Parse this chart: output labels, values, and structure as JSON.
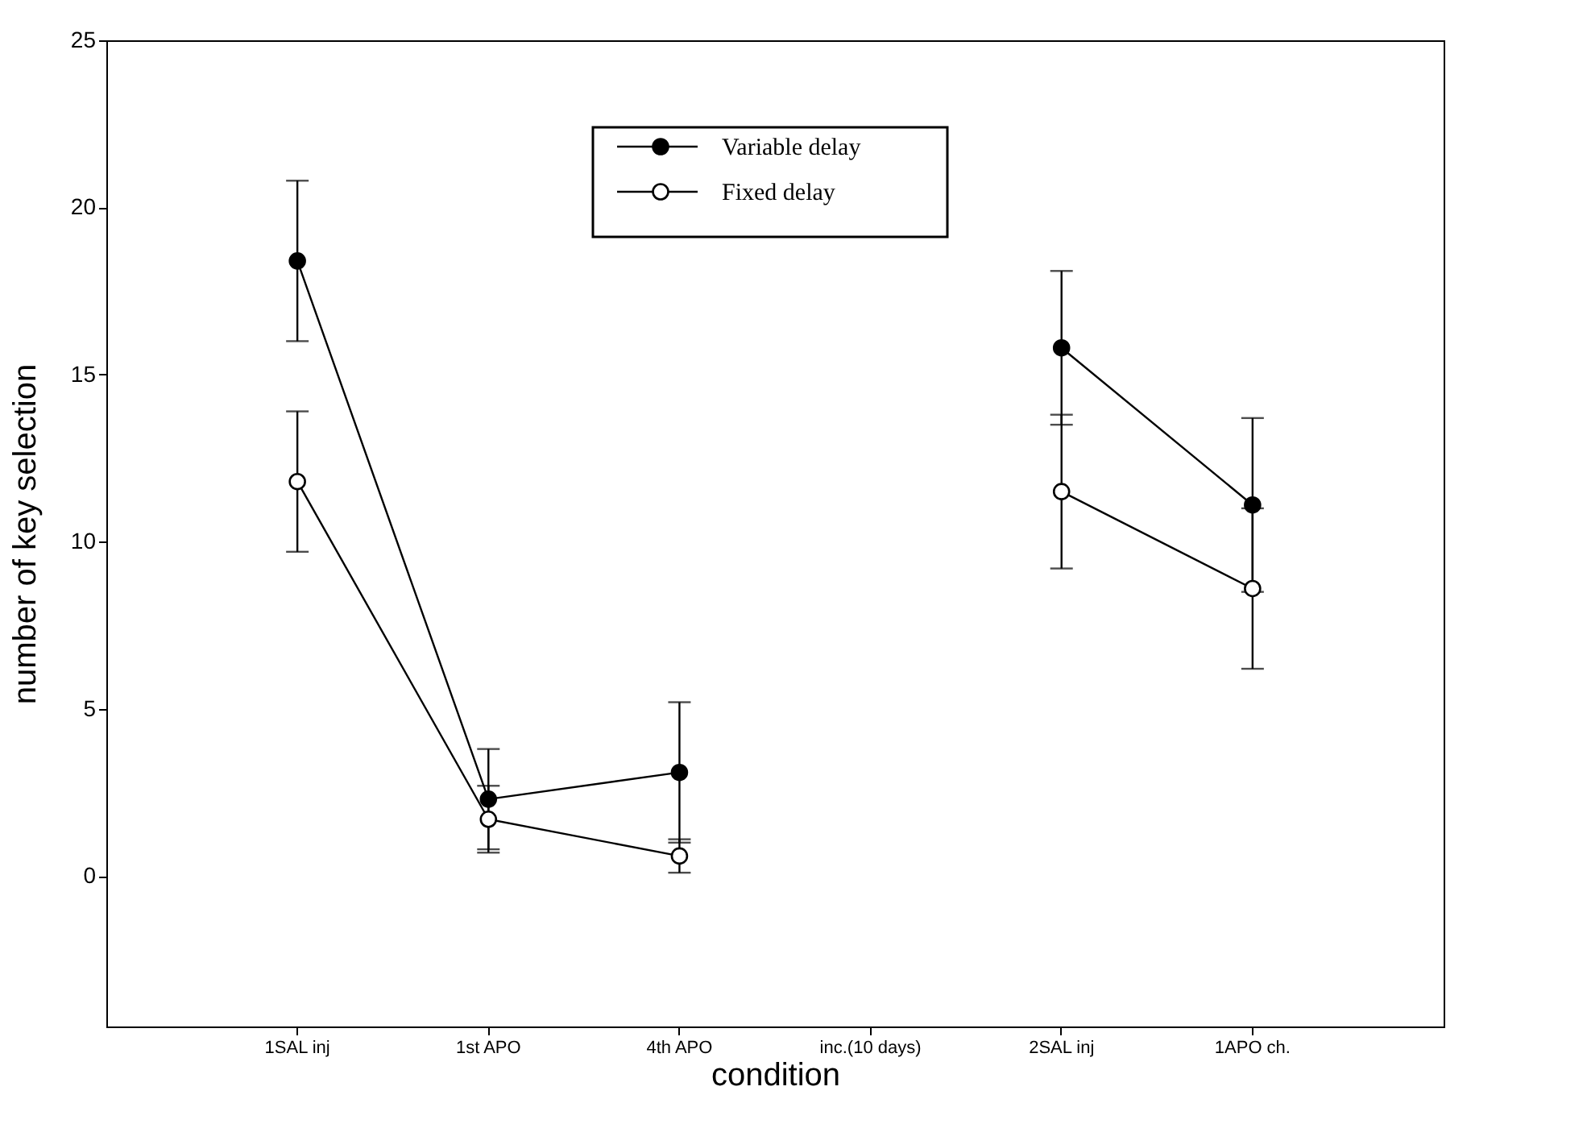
{
  "chart_data": {
    "type": "line",
    "xlabel": "condition",
    "ylabel": "number of key selection",
    "categories": [
      "1SAL inj",
      "1st APO",
      "4th APO",
      "inc.(10 days)",
      "2SAL inj",
      "1APO ch."
    ],
    "series": [
      {
        "name": "Variable delay",
        "color": "#000000",
        "values": [
          18.4,
          2.3,
          3.1,
          null,
          15.8,
          11.1
        ],
        "errors": [
          2.4,
          1.5,
          2.1,
          null,
          2.3,
          2.6
        ]
      },
      {
        "name": "Fixed delay",
        "color": "#000000",
        "values": [
          11.8,
          1.7,
          0.6,
          null,
          11.5,
          8.6
        ],
        "errors": [
          2.1,
          1.0,
          0.5,
          null,
          2.3,
          2.4
        ]
      }
    ],
    "ylim": [
      -4.5,
      25
    ],
    "yticks": [
      0,
      5,
      10,
      15,
      20,
      25
    ],
    "grid": false,
    "legend": "top",
    "marker": "circle",
    "line_style": "solid"
  }
}
